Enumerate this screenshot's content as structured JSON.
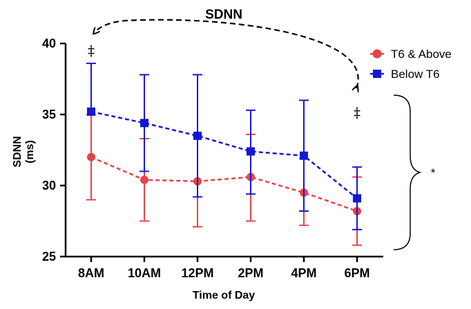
{
  "chart_data": {
    "type": "line",
    "title": "SDNN",
    "xlabel": "Time of Day",
    "ylabel_line1": "SDNN",
    "ylabel_line2": "(ms)",
    "categories": [
      "8AM",
      "10AM",
      "12PM",
      "2PM",
      "4PM",
      "6PM"
    ],
    "ylim": [
      25,
      40
    ],
    "yticks": [
      25,
      30,
      35,
      40
    ],
    "ytick_labels": [
      "25",
      "30",
      "35",
      "40"
    ],
    "grid": false,
    "legend_position": "top-right",
    "series": [
      {
        "name": "T6 & Above",
        "marker": "circle",
        "color": "#e8424a",
        "values": [
          32.0,
          30.4,
          30.3,
          30.6,
          29.5,
          28.2
        ],
        "err_low": [
          29.0,
          27.5,
          27.1,
          27.5,
          27.2,
          25.8
        ],
        "err_high": [
          35.0,
          33.3,
          33.5,
          33.6,
          31.9,
          30.6
        ]
      },
      {
        "name": "Below T6",
        "marker": "square",
        "color": "#1616d2",
        "values": [
          35.2,
          34.4,
          33.5,
          32.4,
          32.1,
          29.1
        ],
        "err_low": [
          35.2,
          31.0,
          29.2,
          29.4,
          28.2,
          26.9
        ],
        "err_high": [
          38.6,
          37.8,
          37.8,
          35.3,
          36.0,
          31.3
        ]
      }
    ],
    "annotations": {
      "double_dagger_8am": "‡",
      "double_dagger_6pm": "‡",
      "significance": "*"
    }
  }
}
